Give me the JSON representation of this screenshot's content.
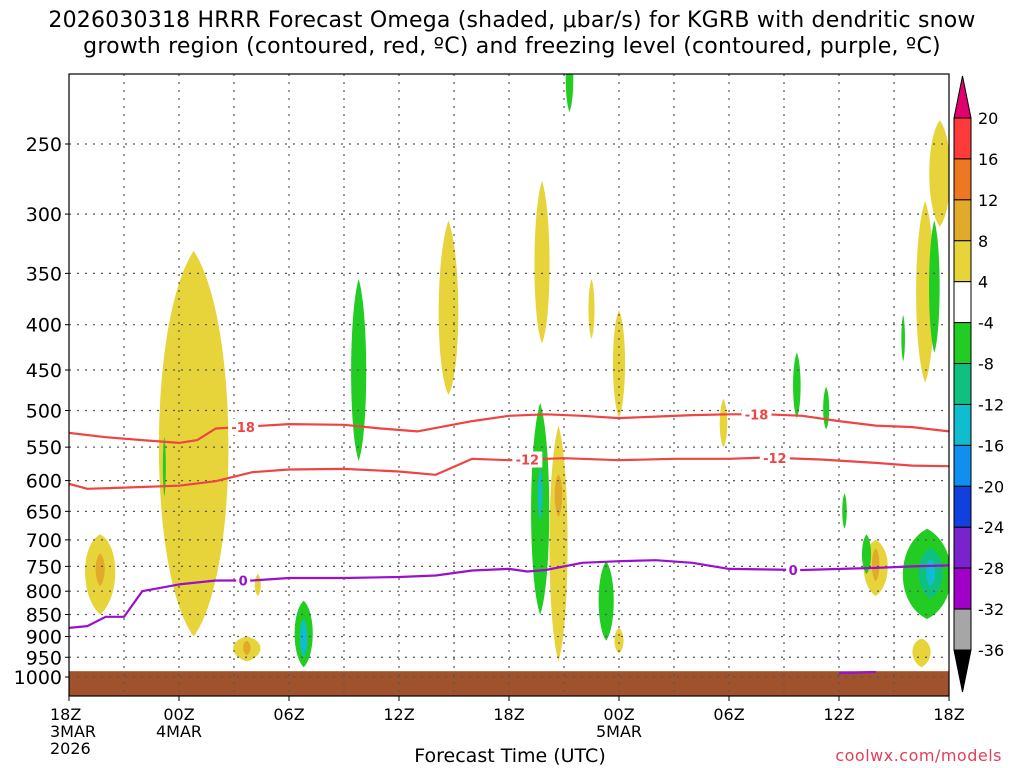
{
  "title_line1": "2026030318 HRRR Forecast Omega (shaded, μbar/s) for KGRB with dendritic snow",
  "title_line2": "growth region (contoured, red, ºC) and freezing level (contoured, purple, ºC)",
  "xlabel": "Forecast Time (UTC)",
  "credit": "coolwx.com/models",
  "chart_data": {
    "type": "heatmap",
    "title": "2026030318 HRRR Forecast Omega (shaded, μbar/s) for KGRB with dendritic snow growth region (contoured, red, ºC) and freezing level (contoured, purple, ºC)",
    "xlabel": "Forecast Time (UTC)",
    "ylabel": "",
    "x_unit": "forecast hour",
    "xlim": [
      0,
      48
    ],
    "y_scale": "log-pressure",
    "ylim": [
      1050,
      200
    ],
    "y_ticks": [
      250,
      300,
      350,
      400,
      450,
      500,
      550,
      600,
      650,
      700,
      750,
      800,
      850,
      900,
      950,
      1000
    ],
    "x_ticks": [
      {
        "hour": 0,
        "lines": [
          "18Z",
          "3MAR",
          "2026"
        ]
      },
      {
        "hour": 6,
        "lines": [
          "00Z",
          "4MAR"
        ]
      },
      {
        "hour": 12,
        "lines": [
          "06Z"
        ]
      },
      {
        "hour": 18,
        "lines": [
          "12Z"
        ]
      },
      {
        "hour": 24,
        "lines": [
          "18Z"
        ]
      },
      {
        "hour": 30,
        "lines": [
          "00Z",
          "5MAR"
        ]
      },
      {
        "hour": 36,
        "lines": [
          "06Z"
        ]
      },
      {
        "hour": 42,
        "lines": [
          "12Z"
        ]
      },
      {
        "hour": 48,
        "lines": [
          "18Z"
        ]
      }
    ],
    "grid": true,
    "colorbar": {
      "levels": [
        20,
        16,
        12,
        8,
        4,
        -4,
        -8,
        -12,
        -16,
        -20,
        -24,
        -28,
        -32,
        -36
      ],
      "colors": [
        "#e0006e",
        "#ff3a3a",
        "#ee7722",
        "#e2aa2a",
        "#e6d43a",
        "#ffffff",
        "#22cc22",
        "#10c080",
        "#10bcd0",
        "#1090ee",
        "#1040dd",
        "#7a22cc",
        "#a000c8",
        "#a6a6a6",
        "#000000"
      ]
    },
    "contours": [
      {
        "color": "#ee4444",
        "label": "-18",
        "points": [
          [
            0,
            530
          ],
          [
            2,
            536
          ],
          [
            4,
            540
          ],
          [
            6,
            544
          ],
          [
            7,
            540
          ],
          [
            8,
            524
          ],
          [
            10,
            521
          ],
          [
            12,
            518
          ],
          [
            15,
            519
          ],
          [
            17,
            524
          ],
          [
            19,
            528
          ],
          [
            22,
            514
          ],
          [
            24,
            507
          ],
          [
            26,
            505
          ],
          [
            28,
            507
          ],
          [
            30,
            510
          ],
          [
            32,
            508
          ],
          [
            34,
            506
          ],
          [
            36,
            505
          ],
          [
            38,
            505
          ],
          [
            40,
            507
          ],
          [
            42,
            514
          ],
          [
            44,
            520
          ],
          [
            46,
            522
          ],
          [
            48,
            528
          ]
        ],
        "label_hours": [
          9.5,
          37.5
        ]
      },
      {
        "color": "#ee4444",
        "label": "-12",
        "points": [
          [
            0,
            605
          ],
          [
            1,
            613
          ],
          [
            3,
            611
          ],
          [
            6,
            608
          ],
          [
            8,
            601
          ],
          [
            10,
            587
          ],
          [
            12,
            583
          ],
          [
            15,
            582
          ],
          [
            18,
            586
          ],
          [
            20,
            591
          ],
          [
            22,
            567
          ],
          [
            24,
            569
          ],
          [
            27,
            566
          ],
          [
            30,
            569
          ],
          [
            33,
            567
          ],
          [
            36,
            567
          ],
          [
            38,
            565
          ],
          [
            41,
            568
          ],
          [
            44,
            573
          ],
          [
            46,
            577
          ],
          [
            48,
            578
          ]
        ],
        "label_hours": [
          25,
          38.5
        ]
      },
      {
        "color": "#9a10cc",
        "label": "0",
        "points": [
          [
            0,
            880
          ],
          [
            1,
            876
          ],
          [
            2,
            855
          ],
          [
            3,
            855
          ],
          [
            4,
            800
          ],
          [
            6,
            786
          ],
          [
            8,
            778
          ],
          [
            10,
            778
          ],
          [
            12,
            773
          ],
          [
            15,
            773
          ],
          [
            18,
            771
          ],
          [
            20,
            768
          ],
          [
            22,
            758
          ],
          [
            24,
            755
          ],
          [
            25,
            760
          ],
          [
            26,
            757
          ],
          [
            28,
            743
          ],
          [
            30,
            740
          ],
          [
            32,
            738
          ],
          [
            34,
            743
          ],
          [
            36,
            755
          ],
          [
            40,
            757
          ],
          [
            44,
            753
          ],
          [
            46,
            750
          ],
          [
            48,
            748
          ]
        ],
        "label_hours": [
          9.5,
          39.5
        ]
      },
      {
        "color": "#9a10cc",
        "label": "",
        "points": [
          [
            42,
            990
          ],
          [
            44,
            987
          ]
        ],
        "label_hours": []
      }
    ],
    "regions": [
      {
        "color": "#e6d43a",
        "h": 1.7,
        "c": 745,
        "hw": 1.0,
        "top": 690,
        "bot": 850
      },
      {
        "color": "#e2aa2a",
        "h": 1.7,
        "c": 750,
        "hw": 0.3,
        "top": 725,
        "bot": 790
      },
      {
        "color": "#e6d43a",
        "h": 6.8,
        "c": 560,
        "hw": 2.3,
        "top": 330,
        "bot": 900
      },
      {
        "color": "#e6d43a",
        "h": 20.7,
        "c": 400,
        "hw": 0.65,
        "top": 305,
        "bot": 480
      },
      {
        "color": "#e6d43a",
        "h": 25.8,
        "c": 350,
        "hw": 0.5,
        "top": 275,
        "bot": 420
      },
      {
        "color": "#e6d43a",
        "h": 30.0,
        "c": 440,
        "hw": 0.4,
        "top": 385,
        "bot": 510
      },
      {
        "color": "#e6d43a",
        "h": 28.5,
        "c": 385,
        "hw": 0.2,
        "top": 355,
        "bot": 415
      },
      {
        "color": "#e6d43a",
        "h": 26.7,
        "c": 710,
        "hw": 0.6,
        "top": 520,
        "bot": 960
      },
      {
        "color": "#e2aa2a",
        "h": 26.7,
        "c": 620,
        "hw": 0.25,
        "top": 590,
        "bot": 660
      },
      {
        "color": "#e6d43a",
        "h": 30.0,
        "c": 910,
        "hw": 0.3,
        "top": 880,
        "bot": 940
      },
      {
        "color": "#e6d43a",
        "h": 35.7,
        "c": 520,
        "hw": 0.25,
        "top": 485,
        "bot": 550
      },
      {
        "color": "#e6d43a",
        "h": 10.3,
        "c": 785,
        "hw": 0.2,
        "top": 765,
        "bot": 810
      },
      {
        "color": "#e6d43a",
        "h": 9.7,
        "c": 925,
        "hw": 0.9,
        "top": 900,
        "bot": 960
      },
      {
        "color": "#e2aa2a",
        "h": 9.7,
        "c": 925,
        "hw": 0.25,
        "top": 910,
        "bot": 945
      },
      {
        "color": "#e6d43a",
        "h": 46.7,
        "c": 370,
        "hw": 0.6,
        "top": 290,
        "bot": 465
      },
      {
        "color": "#e6d43a",
        "h": 47.5,
        "c": 270,
        "hw": 0.7,
        "top": 235,
        "bot": 310
      },
      {
        "color": "#e6d43a",
        "h": 44.0,
        "c": 745,
        "hw": 0.8,
        "top": 700,
        "bot": 810
      },
      {
        "color": "#e2aa2a",
        "h": 44.0,
        "c": 745,
        "hw": 0.25,
        "top": 715,
        "bot": 780
      },
      {
        "color": "#e6d43a",
        "h": 46.5,
        "c": 930,
        "hw": 0.6,
        "top": 905,
        "bot": 975
      },
      {
        "color": "#22cc22",
        "h": 5.2,
        "c": 580,
        "hw": 0.1,
        "top": 535,
        "bot": 625
      },
      {
        "color": "#22cc22",
        "h": 12.8,
        "c": 890,
        "hw": 0.6,
        "top": 820,
        "bot": 975
      },
      {
        "color": "#10bcd0",
        "h": 12.8,
        "c": 900,
        "hw": 0.25,
        "top": 860,
        "bot": 950
      },
      {
        "color": "#22cc22",
        "h": 15.8,
        "c": 460,
        "hw": 0.5,
        "top": 355,
        "bot": 570
      },
      {
        "color": "#22cc22",
        "h": 27.3,
        "c": 210,
        "hw": 0.25,
        "top": 195,
        "bot": 230
      },
      {
        "color": "#22cc22",
        "h": 25.7,
        "c": 660,
        "hw": 0.6,
        "top": 490,
        "bot": 850
      },
      {
        "color": "#10bcd0",
        "h": 25.7,
        "c": 620,
        "hw": 0.15,
        "top": 580,
        "bot": 665
      },
      {
        "color": "#22cc22",
        "h": 29.3,
        "c": 820,
        "hw": 0.5,
        "top": 740,
        "bot": 910
      },
      {
        "color": "#22cc22",
        "h": 39.7,
        "c": 470,
        "hw": 0.25,
        "top": 430,
        "bot": 510
      },
      {
        "color": "#22cc22",
        "h": 41.3,
        "c": 500,
        "hw": 0.2,
        "top": 470,
        "bot": 525
      },
      {
        "color": "#22cc22",
        "h": 42.3,
        "c": 650,
        "hw": 0.15,
        "top": 620,
        "bot": 680
      },
      {
        "color": "#22cc22",
        "h": 43.5,
        "c": 725,
        "hw": 0.3,
        "top": 690,
        "bot": 765
      },
      {
        "color": "#22cc22",
        "h": 47.2,
        "c": 365,
        "hw": 0.35,
        "top": 305,
        "bot": 430
      },
      {
        "color": "#22cc22",
        "h": 45.5,
        "c": 415,
        "hw": 0.12,
        "top": 390,
        "bot": 440
      },
      {
        "color": "#22cc22",
        "h": 46.8,
        "c": 770,
        "hw": 1.6,
        "top": 680,
        "bot": 860
      },
      {
        "color": "#10c080",
        "h": 47.0,
        "c": 760,
        "hw": 0.8,
        "top": 715,
        "bot": 815
      },
      {
        "color": "#10bcd0",
        "h": 47.0,
        "c": 760,
        "hw": 0.3,
        "top": 735,
        "bot": 790
      }
    ],
    "surface": {
      "color": "#a0522d",
      "top_pressure": 985
    }
  }
}
